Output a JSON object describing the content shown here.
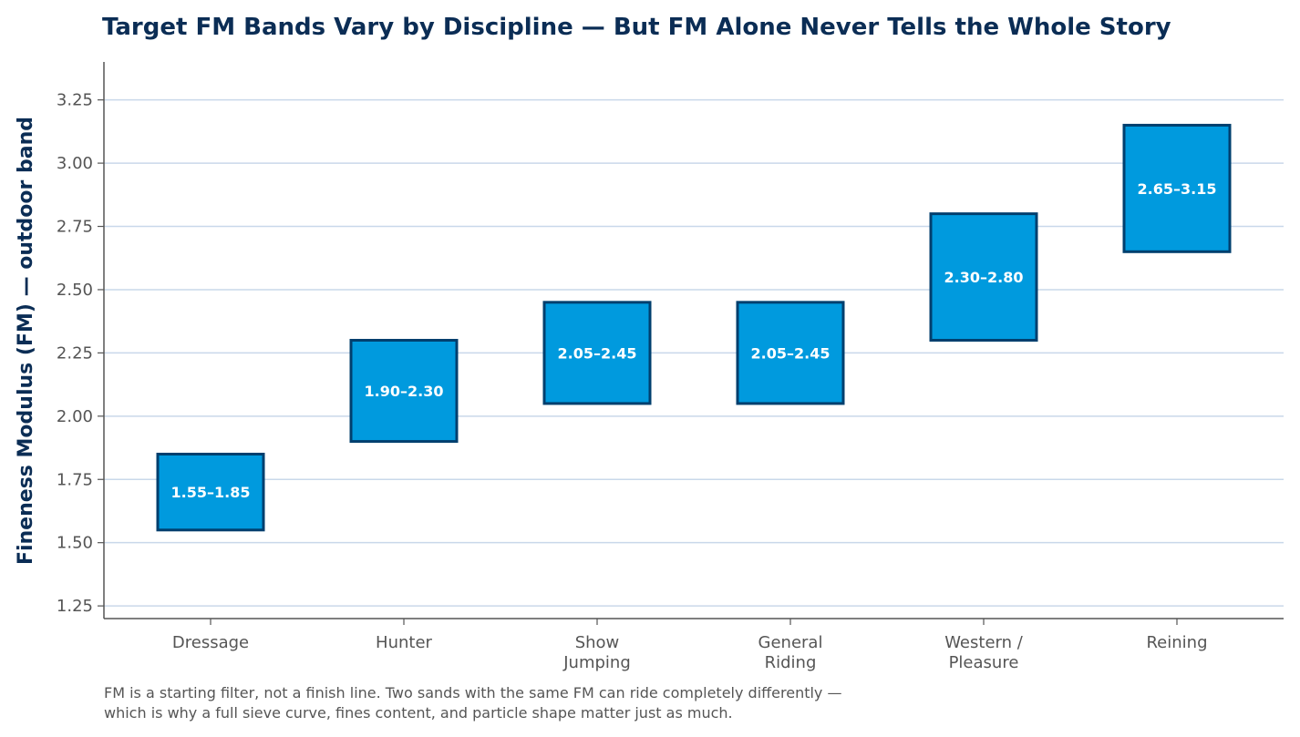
{
  "colors": {
    "title": "#0b2d55",
    "ylabel": "#0b2d55",
    "bar_fill": "#009ade",
    "bar_edge": "#003f6e",
    "bar_text": "#ffffff",
    "grid": "#c9d8ea",
    "axis": "#555555",
    "tick_text": "#555555"
  },
  "chart_data": {
    "type": "bar",
    "subtype": "floating-range",
    "title": "Target FM Bands Vary by Discipline — But FM Alone Never Tells the Whole Story",
    "xlabel": "",
    "ylabel": "Fineness Modulus (FM) — outdoor band",
    "ylim": [
      1.2,
      3.4
    ],
    "yticks": [
      1.25,
      1.5,
      1.75,
      2.0,
      2.25,
      2.5,
      2.75,
      3.0,
      3.25
    ],
    "ytick_labels": [
      "1.25",
      "1.50",
      "1.75",
      "2.00",
      "2.25",
      "2.50",
      "2.75",
      "3.00",
      "3.25"
    ],
    "grid": "horizontal",
    "categories": [
      [
        "Dressage"
      ],
      [
        "Hunter"
      ],
      [
        "Show",
        "Jumping"
      ],
      [
        "General",
        "Riding"
      ],
      [
        "Western /",
        "Pleasure"
      ],
      [
        "Reining"
      ]
    ],
    "ranges": [
      [
        1.55,
        1.85
      ],
      [
        1.9,
        2.3
      ],
      [
        2.05,
        2.45
      ],
      [
        2.05,
        2.45
      ],
      [
        2.3,
        2.8
      ],
      [
        2.65,
        3.15
      ]
    ],
    "data_labels": [
      "1.55–1.85",
      "1.90–2.30",
      "2.05–2.45",
      "2.05–2.45",
      "2.30–2.80",
      "2.65–3.15"
    ]
  },
  "footnote": {
    "line1": "FM is a starting filter, not a finish line. Two sands with the same FM can ride completely differently —",
    "line2": "which is why a full sieve curve, fines content, and particle shape matter just as much."
  }
}
